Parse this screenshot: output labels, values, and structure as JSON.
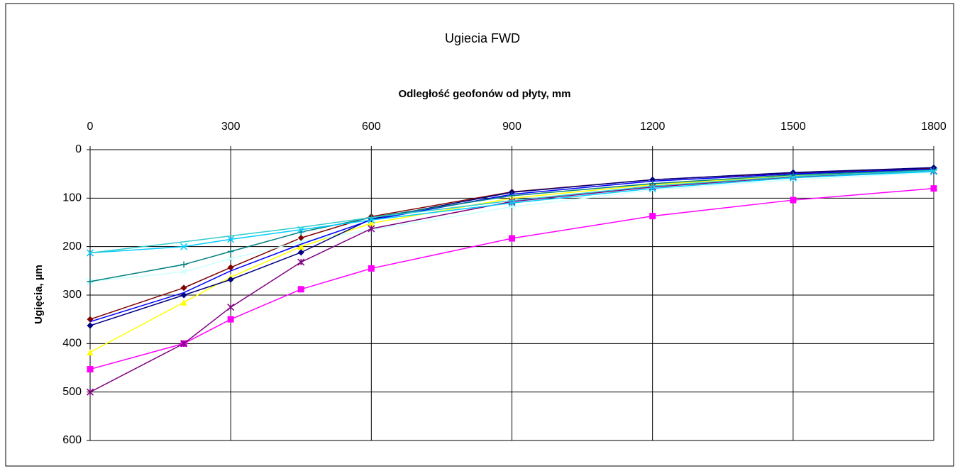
{
  "chart_data": {
    "type": "line",
    "title": "Ugiecia FWD",
    "x_label": "Odległość geofonów od płyty, mm",
    "y_label": "Ugięcia, µm",
    "x": [
      0,
      200,
      300,
      450,
      600,
      900,
      1200,
      1500,
      1800
    ],
    "xlim": [
      0,
      1800
    ],
    "xticks": [
      0,
      300,
      600,
      900,
      1200,
      1500,
      1800
    ],
    "ylim": [
      0,
      600
    ],
    "yticks": [
      0,
      100,
      200,
      300,
      400,
      500,
      600
    ],
    "y_reversed": true,
    "grid": true,
    "series": [
      {
        "color": "#800000",
        "marker": "diamond",
        "values": [
          350,
          285,
          243,
          182,
          138,
          87,
          62,
          48,
          38
        ]
      },
      {
        "color": "#FF00FF",
        "marker": "square",
        "values": [
          453,
          400,
          350,
          288,
          245,
          183,
          137,
          104,
          80
        ]
      },
      {
        "color": "#FFFF00",
        "marker": "triangle",
        "values": [
          418,
          315,
          263,
          200,
          152,
          100,
          72,
          54,
          43
        ]
      },
      {
        "color": "#CCFFFF",
        "marker": "x",
        "values": [
          272,
          252,
          225,
          190,
          165,
          118,
          83,
          62,
          47
        ]
      },
      {
        "color": "#800080",
        "marker": "star",
        "values": [
          500,
          400,
          325,
          232,
          163,
          107,
          77,
          56,
          44
        ]
      },
      {
        "color": "#000080",
        "marker": "diamond",
        "values": [
          363,
          300,
          268,
          212,
          143,
          88,
          62,
          47,
          37
        ]
      },
      {
        "color": "#0000FF",
        "marker": "none",
        "values": [
          355,
          295,
          250,
          195,
          145,
          92,
          65,
          50,
          40
        ]
      },
      {
        "color": "#008080",
        "marker": "plus",
        "values": [
          272,
          237,
          210,
          170,
          140,
          95,
          70,
          52,
          42
        ]
      },
      {
        "color": "#00CCFF",
        "marker": "x",
        "values": [
          213,
          200,
          185,
          165,
          145,
          110,
          80,
          58,
          45
        ]
      },
      {
        "color": "#33CCCC",
        "marker": "none",
        "values": [
          213,
          190,
          178,
          160,
          140,
          105,
          75,
          55,
          43
        ]
      }
    ]
  }
}
